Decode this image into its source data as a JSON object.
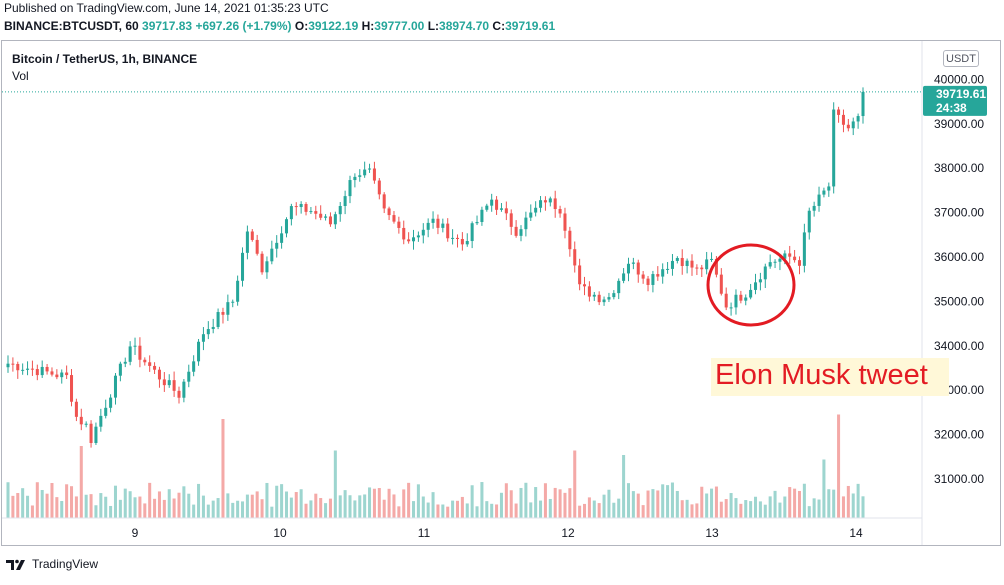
{
  "header": {
    "published": "Published on TradingView.com, June 14, 2021 01:35:23 UTC",
    "symbol": "BINANCE:BTCUSDT, 60",
    "last": "39717.83",
    "change": "+697.26 (+1.79%)",
    "o_label": "O:",
    "o_value": "39122.19",
    "h_label": "H:",
    "h_value": "39777.00",
    "l_label": "L:",
    "l_value": "38974.70",
    "c_label": "C:",
    "c_value": "39719.61"
  },
  "legend": {
    "title": "Bitcoin / TetherUS, 1h, BINANCE",
    "volume_label": "Vol"
  },
  "currency_button": "USDT",
  "price_badge": {
    "price": "39719.61",
    "countdown": "24:38"
  },
  "annotation": {
    "text": "Elon Musk tweet"
  },
  "brand": {
    "name": "TradingView"
  },
  "colors": {
    "up": "#26a69a",
    "down": "#ef5350",
    "vol_up": "#9dd5cf",
    "vol_down": "#f4a9a7",
    "circle": "#e31b23",
    "note_bg": "#fff8d8"
  },
  "chart_data": {
    "type": "candlestick",
    "title": "Bitcoin / TetherUS, 1h, BINANCE",
    "x_tick_labels": [
      "9",
      "10",
      "11",
      "12",
      "13",
      "14"
    ],
    "y_tick_labels": [
      "31000.00",
      "32000.00",
      "33000.00",
      "34000.00",
      "35000.00",
      "36000.00",
      "37000.00",
      "38000.00",
      "39000.00",
      "40000.00"
    ],
    "ylim": [
      30150,
      41400
    ],
    "last_price": 39719.61,
    "grid": false,
    "annotation": "Elon Musk tweet",
    "keypoints": [
      {
        "i": 0,
        "p": 33600
      },
      {
        "i": 12,
        "p": 33300
      },
      {
        "i": 14,
        "p": 32400
      },
      {
        "i": 16,
        "p": 32200
      },
      {
        "i": 17,
        "p": 31900
      },
      {
        "i": 21,
        "p": 32950
      },
      {
        "i": 25,
        "p": 34000
      },
      {
        "i": 31,
        "p": 33300
      },
      {
        "i": 35,
        "p": 32900
      },
      {
        "i": 40,
        "p": 34300
      },
      {
        "i": 46,
        "p": 35000
      },
      {
        "i": 49,
        "p": 36600
      },
      {
        "i": 52,
        "p": 35750
      },
      {
        "i": 58,
        "p": 37100
      },
      {
        "i": 62,
        "p": 37050
      },
      {
        "i": 66,
        "p": 36750
      },
      {
        "i": 71,
        "p": 37900
      },
      {
        "i": 74,
        "p": 37900
      },
      {
        "i": 77,
        "p": 37000
      },
      {
        "i": 82,
        "p": 36400
      },
      {
        "i": 87,
        "p": 36800
      },
      {
        "i": 93,
        "p": 36300
      },
      {
        "i": 99,
        "p": 37300
      },
      {
        "i": 104,
        "p": 36600
      },
      {
        "i": 110,
        "p": 37300
      },
      {
        "i": 113,
        "p": 37100
      },
      {
        "i": 115,
        "p": 36300
      },
      {
        "i": 117,
        "p": 35300
      },
      {
        "i": 121,
        "p": 35100
      },
      {
        "i": 123,
        "p": 35100
      },
      {
        "i": 127,
        "p": 35900
      },
      {
        "i": 131,
        "p": 35500
      },
      {
        "i": 137,
        "p": 36000
      },
      {
        "i": 141,
        "p": 35700
      },
      {
        "i": 144,
        "p": 35900
      },
      {
        "i": 147,
        "p": 34900
      },
      {
        "i": 151,
        "p": 35200
      },
      {
        "i": 156,
        "p": 35900
      },
      {
        "i": 160,
        "p": 36000
      },
      {
        "i": 162,
        "p": 35900
      },
      {
        "i": 164,
        "p": 37000
      },
      {
        "i": 166,
        "p": 37300
      },
      {
        "i": 168,
        "p": 37600
      },
      {
        "i": 169,
        "p": 39200
      },
      {
        "i": 172,
        "p": 38900
      },
      {
        "i": 174,
        "p": 39100
      },
      {
        "i": 175,
        "p": 39717
      }
    ],
    "volume_spikes": [
      {
        "i": 15,
        "v": 1.6
      },
      {
        "i": 44,
        "v": 2.2
      },
      {
        "i": 67,
        "v": 1.5
      },
      {
        "i": 116,
        "v": 1.5
      },
      {
        "i": 126,
        "v": 1.4
      },
      {
        "i": 167,
        "v": 1.3
      },
      {
        "i": 170,
        "v": 2.3
      }
    ]
  }
}
